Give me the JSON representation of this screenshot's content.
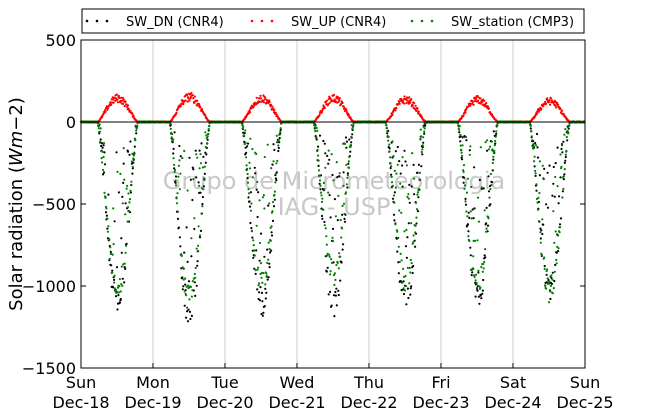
{
  "chart_data": {
    "type": "scatter",
    "ylabel": "Solar radiation (Wm−2)",
    "ylabel_parts": [
      "Solar radiation (",
      "Wm",
      "−2",
      ")"
    ],
    "watermark": [
      "Grupo de Micrometeorologia",
      "IAG - USP"
    ],
    "ylim": [
      -1500,
      500
    ],
    "xlim": [
      0,
      7
    ],
    "yticks": [
      500,
      0,
      -500,
      -1000,
      -1500
    ],
    "ytick_labels": [
      "500",
      "0",
      "−500",
      "−1000",
      "−1500"
    ],
    "xticks": [
      0,
      1,
      2,
      3,
      4,
      5,
      6,
      7
    ],
    "xtick_labels": [
      [
        "Sun",
        "Dec-18"
      ],
      [
        "Mon",
        "Dec-19"
      ],
      [
        "Tue",
        "Dec-20"
      ],
      [
        "Wed",
        "Dec-21"
      ],
      [
        "Thu",
        "Dec-22"
      ],
      [
        "Fri",
        "Dec-23"
      ],
      [
        "Sat",
        "Dec-24"
      ],
      [
        "Sun",
        "Dec-25"
      ]
    ],
    "grid": "vertical",
    "legend_position": "top",
    "series": [
      {
        "name": "SW_DN (CNR4)",
        "color": "#000000",
        "sign": -1,
        "daily_peaks": [
          -1180,
          -1270,
          -1190,
          -1190,
          -1160,
          -1150,
          -1100
        ]
      },
      {
        "name": "SW_UP (CNR4)",
        "color": "#ff0000",
        "sign": 1,
        "daily_peaks": [
          170,
          180,
          170,
          170,
          160,
          160,
          150
        ]
      },
      {
        "name": "SW_station (CMP3)",
        "color": "#008000",
        "sign": -1,
        "daily_peaks": [
          -1110,
          -1180,
          -1060,
          -1000,
          -1050,
          -1050,
          -1110
        ]
      }
    ],
    "sunrise_hour": 5.5,
    "sunset_hour": 19.0
  }
}
